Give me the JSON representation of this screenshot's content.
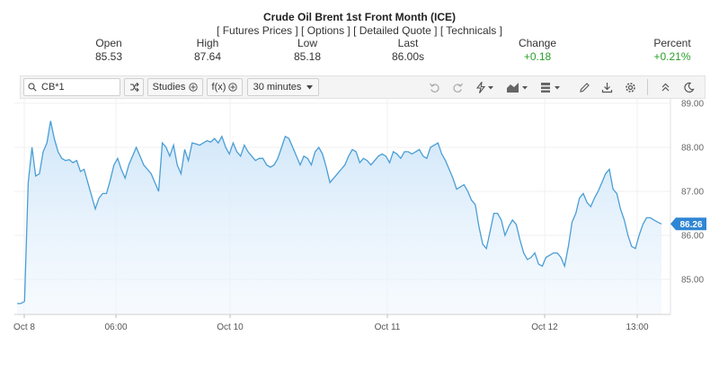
{
  "header": {
    "title": "Crude Oil Brent 1st Front Month (ICE)",
    "links": [
      "Futures Prices",
      "Options",
      "Detailed Quote",
      "Technicals"
    ]
  },
  "stats": {
    "open": {
      "label": "Open",
      "value": "85.53"
    },
    "high": {
      "label": "High",
      "value": "87.64"
    },
    "low": {
      "label": "Low",
      "value": "85.18"
    },
    "last": {
      "label": "Last",
      "value": "86.00s"
    },
    "change": {
      "label": "Change",
      "value": "+0.18"
    },
    "percent": {
      "label": "Percent",
      "value": "+0.21%"
    }
  },
  "toolbar": {
    "symbol": "CB*1",
    "studies_label": "Studies",
    "fx_label": "f(x)",
    "interval_label": "30 minutes"
  },
  "colors": {
    "line": "#4a9ed6",
    "fill_top": "#cfe6f9",
    "price_tag": "#2f86d4",
    "positive": "#2aa02a"
  },
  "chart_data": {
    "type": "area",
    "x_tick_labels": [
      "Oct 8",
      "06:00",
      "Oct 10",
      "Oct 11",
      "Oct 12",
      "13:00"
    ],
    "y_ticks": [
      85.0,
      86.0,
      87.0,
      88.0,
      89.0
    ],
    "ylim": [
      84.0,
      89.0
    ],
    "last_price_label": "86.26",
    "grid": true,
    "values": [
      84.45,
      84.45,
      84.5,
      87.2,
      88.0,
      87.35,
      87.4,
      87.9,
      88.1,
      88.6,
      88.2,
      87.9,
      87.75,
      87.7,
      87.72,
      87.65,
      87.7,
      87.45,
      87.5,
      87.2,
      86.9,
      86.6,
      86.85,
      86.95,
      86.95,
      87.25,
      87.6,
      87.75,
      87.5,
      87.3,
      87.6,
      87.8,
      88.0,
      87.8,
      87.6,
      87.5,
      87.4,
      87.2,
      87.0,
      88.1,
      88.0,
      87.8,
      88.05,
      87.6,
      87.4,
      87.95,
      87.7,
      88.1,
      88.08,
      88.05,
      88.1,
      88.15,
      88.12,
      88.2,
      88.1,
      88.25,
      88.0,
      87.85,
      88.1,
      87.9,
      87.8,
      88.05,
      87.9,
      87.8,
      87.7,
      87.75,
      87.75,
      87.6,
      87.55,
      87.6,
      87.75,
      88.0,
      88.25,
      88.2,
      88.0,
      87.8,
      87.6,
      87.8,
      87.75,
      87.6,
      87.9,
      88.0,
      87.85,
      87.55,
      87.2,
      87.3,
      87.4,
      87.5,
      87.6,
      87.8,
      87.95,
      87.9,
      87.65,
      87.75,
      87.7,
      87.6,
      87.7,
      87.8,
      87.85,
      87.8,
      87.65,
      87.9,
      87.85,
      87.75,
      87.9,
      87.9,
      87.85,
      87.9,
      87.95,
      87.8,
      87.75,
      88.0,
      88.05,
      88.1,
      87.85,
      87.7,
      87.5,
      87.3,
      87.05,
      87.1,
      87.15,
      87.0,
      86.8,
      86.7,
      86.2,
      85.8,
      85.7,
      86.1,
      86.5,
      86.5,
      86.35,
      86.0,
      86.2,
      86.35,
      86.25,
      85.9,
      85.6,
      85.45,
      85.5,
      85.6,
      85.35,
      85.3,
      85.5,
      85.55,
      85.6,
      85.6,
      85.5,
      85.3,
      85.75,
      86.3,
      86.5,
      86.85,
      86.95,
      86.75,
      86.65,
      86.85,
      87.0,
      87.2,
      87.4,
      87.5,
      87.05,
      86.95,
      86.6,
      86.35,
      86.0,
      85.75,
      85.7,
      86.0,
      86.25,
      86.4,
      86.4,
      86.35,
      86.3,
      86.26
    ]
  }
}
